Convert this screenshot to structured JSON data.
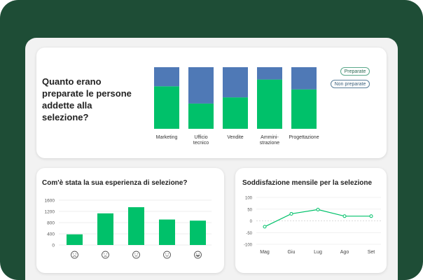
{
  "colors": {
    "green": "#00c16a",
    "blue": "#4f79b6",
    "frame": "#1e4d36",
    "axis_text": "#555555"
  },
  "top_card": {
    "title": "Quanto erano preparate le persone addette alla selezione?",
    "legend": [
      "Preparate",
      "Non preparate"
    ]
  },
  "left_card": {
    "title": "Com'è stata la sua esperienza di selezione?"
  },
  "right_card": {
    "title": "Soddisfazione mensile per la selezione"
  },
  "chart_data": [
    {
      "type": "bar",
      "stacked": true,
      "categories": [
        [
          "Marketing"
        ],
        [
          "Ufficio",
          "tecnico"
        ],
        [
          "Vendite"
        ],
        [
          "Ammini-",
          "strazione"
        ],
        [
          "Progettazione"
        ]
      ],
      "series": [
        {
          "name": "Preparate",
          "color": "#00c16a",
          "values": [
            69,
            41,
            51,
            80,
            64
          ]
        },
        {
          "name": "Non preparate",
          "color": "#4f79b6",
          "values": [
            31,
            59,
            49,
            20,
            36
          ]
        }
      ],
      "ylim": [
        0,
        100
      ]
    },
    {
      "type": "bar",
      "categories": [
        "very-unhappy-face-icon",
        "unhappy-face-icon",
        "neutral-face-icon",
        "happy-face-icon",
        "very-happy-face-icon"
      ],
      "values": [
        380,
        1130,
        1350,
        910,
        870
      ],
      "yticks": [
        0,
        400,
        800,
        1200,
        1600
      ],
      "ylim": [
        0,
        1600
      ],
      "grid": true
    },
    {
      "type": "line",
      "categories": [
        "Mag",
        "Giu",
        "Lug",
        "Ago",
        "Set"
      ],
      "values": [
        -25,
        30,
        48,
        20,
        20
      ],
      "yticks": [
        -100,
        -50,
        0,
        50,
        100
      ],
      "ylim": [
        -100,
        100
      ],
      "grid": true,
      "color": "#00c16a"
    }
  ]
}
